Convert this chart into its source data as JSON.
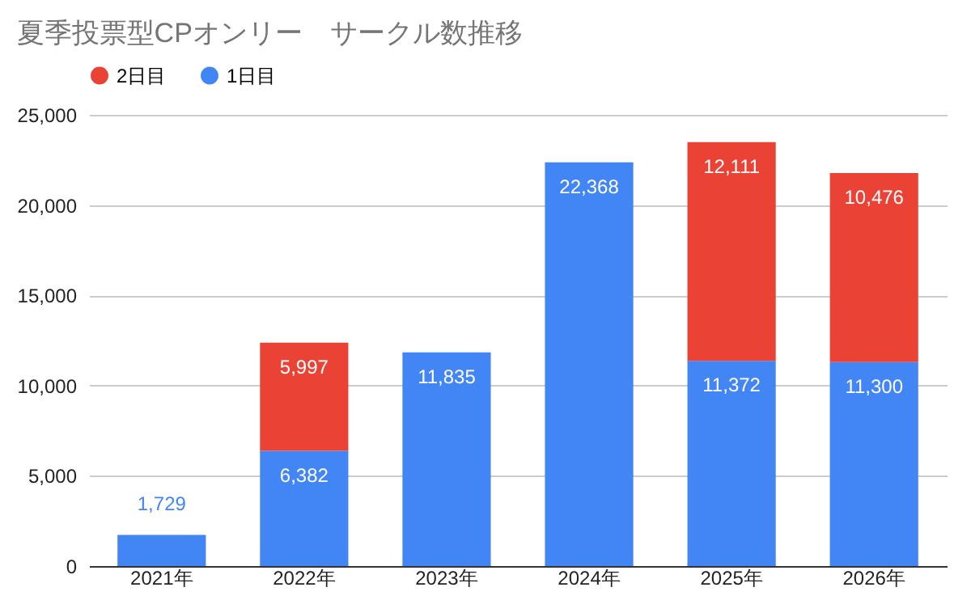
{
  "chart_data": {
    "type": "bar",
    "title": "夏季投票型CPオンリー　サークル数推移",
    "categories": [
      "2021年",
      "2022年",
      "2023年",
      "2024年",
      "2025年",
      "2026年"
    ],
    "stacked": true,
    "series": [
      {
        "name": "1日目",
        "color": "#4285f4",
        "values": [
          1729,
          6382,
          11835,
          22368,
          11372,
          11300
        ],
        "value_labels": [
          "1,729",
          "6,382",
          "11,835",
          "22,368",
          "11,372",
          "11,300"
        ]
      },
      {
        "name": "2日目",
        "color": "#ea4335",
        "values": [
          null,
          5997,
          null,
          null,
          12111,
          10476
        ],
        "value_labels": [
          null,
          "5,997",
          null,
          null,
          "12,111",
          "10,476"
        ]
      }
    ],
    "ylim": [
      0,
      25000
    ],
    "yticks": [
      0,
      {
        "value": 5000,
        "label": "5,000"
      },
      {
        "value": 10000,
        "label": "10,000"
      },
      {
        "value": 15000,
        "label": "15,000"
      },
      {
        "value": 20000,
        "label": "20,000"
      },
      {
        "value": 25000,
        "label": "25,000"
      }
    ],
    "grid": "y",
    "legend": "top"
  }
}
